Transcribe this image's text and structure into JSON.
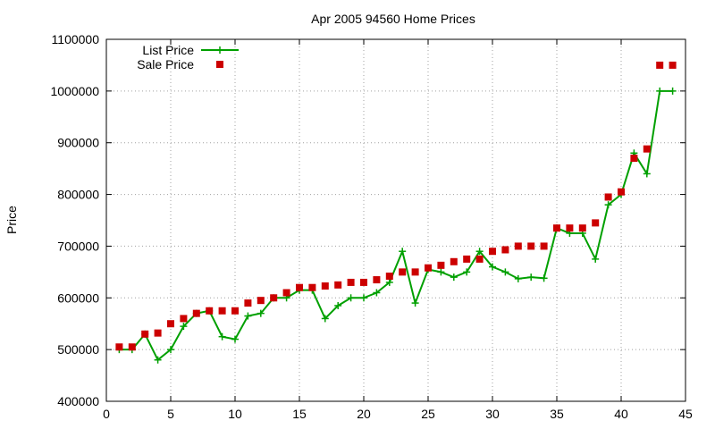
{
  "chart_data": {
    "type": "line",
    "title": "Apr 2005 94560 Home Prices",
    "xlabel": "",
    "ylabel": "Price",
    "xlim": [
      0,
      45
    ],
    "ylim": [
      400000,
      1100000
    ],
    "x_ticks": [
      "0",
      "5",
      "10",
      "15",
      "20",
      "25",
      "30",
      "35",
      "40",
      "45"
    ],
    "y_ticks": [
      "400000",
      "500000",
      "600000",
      "700000",
      "800000",
      "900000",
      "1000000",
      "1100000"
    ],
    "grid": true,
    "legend_position": "top-left",
    "series": [
      {
        "name": "List Price",
        "style": "line-with-plus-markers",
        "color": "#00a000",
        "x": [
          1,
          2,
          3,
          4,
          5,
          6,
          7,
          8,
          9,
          10,
          11,
          12,
          13,
          14,
          15,
          16,
          17,
          18,
          19,
          20,
          21,
          22,
          23,
          24,
          25,
          26,
          27,
          28,
          29,
          30,
          31,
          32,
          33,
          34,
          35,
          36,
          37,
          38,
          39,
          40,
          41,
          42,
          43,
          44
        ],
        "values": [
          500000,
          500000,
          530000,
          480000,
          500000,
          545000,
          570000,
          575000,
          525000,
          520000,
          565000,
          570000,
          600000,
          600000,
          615000,
          615000,
          560000,
          585000,
          600000,
          600000,
          610000,
          630000,
          690000,
          590000,
          655000,
          650000,
          640000,
          650000,
          690000,
          660000,
          650000,
          637000,
          640000,
          638000,
          735000,
          725000,
          725000,
          675000,
          780000,
          800000,
          880000,
          840000,
          1000000,
          1000000
        ]
      },
      {
        "name": "Sale Price",
        "style": "square-markers",
        "color": "#cc0000",
        "x": [
          1,
          2,
          3,
          4,
          5,
          6,
          7,
          8,
          9,
          10,
          11,
          12,
          13,
          14,
          15,
          16,
          17,
          18,
          19,
          20,
          21,
          22,
          23,
          24,
          25,
          26,
          27,
          28,
          29,
          30,
          31,
          32,
          33,
          34,
          35,
          36,
          37,
          38,
          39,
          40,
          41,
          42,
          43,
          44
        ],
        "values": [
          505000,
          505000,
          530000,
          532000,
          550000,
          560000,
          570000,
          575000,
          575000,
          575000,
          590000,
          595000,
          600000,
          610000,
          620000,
          620000,
          623000,
          625000,
          630000,
          630000,
          635000,
          642000,
          650000,
          650000,
          658000,
          663000,
          670000,
          675000,
          675000,
          690000,
          693000,
          700000,
          700000,
          700000,
          735000,
          735000,
          735000,
          745000,
          795000,
          805000,
          870000,
          888000,
          1050000,
          1050000
        ]
      }
    ]
  }
}
